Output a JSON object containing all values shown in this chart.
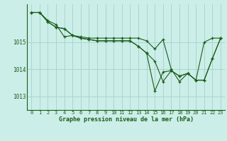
{
  "title": "Graphe pression niveau de la mer (hPa)",
  "bg_color": "#cceee8",
  "grid_color": "#aad4ce",
  "line_color": "#1a5c1a",
  "x_ticks": [
    0,
    1,
    2,
    3,
    4,
    5,
    6,
    7,
    8,
    9,
    10,
    11,
    12,
    13,
    14,
    15,
    16,
    17,
    18,
    19,
    20,
    21,
    22,
    23
  ],
  "y_ticks": [
    1013,
    1014,
    1015
  ],
  "ylim": [
    1012.5,
    1016.4
  ],
  "xlim": [
    -0.5,
    23.5
  ],
  "series": [
    [
      1016.1,
      1016.1,
      1015.8,
      1015.65,
      1015.2,
      1015.25,
      1015.2,
      1015.15,
      1015.15,
      1015.15,
      1015.15,
      1015.15,
      1015.15,
      1015.15,
      1015.05,
      1014.75,
      1015.1,
      1014.0,
      1013.55,
      1013.85,
      1013.6,
      1015.0,
      1015.15,
      1015.15
    ],
    [
      1016.1,
      1016.1,
      1015.75,
      1015.55,
      1015.5,
      1015.25,
      1015.15,
      1015.1,
      1015.05,
      1015.05,
      1015.05,
      1015.05,
      1015.05,
      1014.85,
      1014.6,
      1014.3,
      1013.55,
      1013.95,
      1013.75,
      1013.85,
      1013.6,
      1013.6,
      1014.4,
      1015.15
    ],
    [
      1016.1,
      1016.1,
      1015.75,
      1015.55,
      1015.5,
      1015.25,
      1015.15,
      1015.1,
      1015.05,
      1015.05,
      1015.05,
      1015.05,
      1015.05,
      1014.85,
      1014.6,
      1013.2,
      1013.9,
      1013.95,
      1013.75,
      1013.85,
      1013.6,
      1013.6,
      1014.4,
      1015.15
    ]
  ],
  "tick_fontsize": 5.0,
  "label_fontsize": 6.0
}
